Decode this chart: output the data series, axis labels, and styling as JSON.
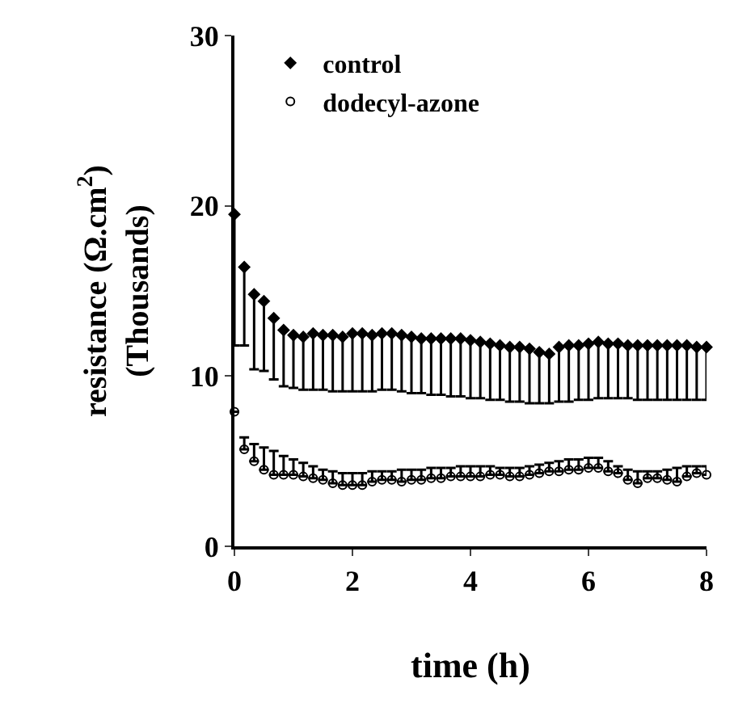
{
  "chart_data": {
    "type": "scatter",
    "xlabel": "time (h)",
    "ylabel": "resistance (Ω.cm$^{2}$)\n(Thousands)",
    "xlim": [
      0,
      8
    ],
    "xticks": [
      0,
      2,
      4,
      6,
      8
    ],
    "ylim": [
      0,
      30
    ],
    "yticks": [
      0,
      10,
      20,
      30
    ],
    "legend": "top left",
    "x": [
      0,
      0.1667,
      0.3333,
      0.5,
      0.6667,
      0.8333,
      1,
      1.1667,
      1.3333,
      1.5,
      1.6667,
      1.8333,
      2,
      2.1667,
      2.3333,
      2.5,
      2.6667,
      2.8333,
      3,
      3.1667,
      3.3333,
      3.5,
      3.6667,
      3.8333,
      4,
      4.1667,
      4.3333,
      4.5,
      4.6667,
      4.8333,
      5,
      5.1667,
      5.3333,
      5.5,
      5.6667,
      5.8333,
      6,
      6.1667,
      6.3333,
      6.5,
      6.6667,
      6.8333,
      7,
      7.1667,
      7.3333,
      7.5,
      7.6667,
      7.8333,
      8
    ],
    "series": [
      {
        "name": "control",
        "color": "#000000",
        "marker": "diamond",
        "values": [
          19.5,
          16.4,
          14.8,
          14.4,
          13.4,
          12.7,
          12.4,
          12.3,
          12.5,
          12.4,
          12.4,
          12.3,
          12.5,
          12.5,
          12.4,
          12.5,
          12.5,
          12.4,
          12.3,
          12.2,
          12.2,
          12.2,
          12.2,
          12.2,
          12.1,
          12.0,
          11.9,
          11.8,
          11.7,
          11.7,
          11.6,
          11.4,
          11.3,
          11.7,
          11.8,
          11.8,
          11.9,
          12.0,
          11.9,
          11.9,
          11.8,
          11.8,
          11.8,
          11.8,
          11.8,
          11.8,
          11.8,
          11.7,
          11.7
        ],
        "errors": [
          [
            11.8,
            19.5
          ],
          [
            11.8,
            16.4
          ],
          [
            10.4,
            14.8
          ],
          [
            10.3,
            14.4
          ],
          [
            9.8,
            13.4
          ],
          [
            9.4,
            12.7
          ],
          [
            9.3,
            12.4
          ],
          [
            9.2,
            12.3
          ],
          [
            9.2,
            12.5
          ],
          [
            9.2,
            12.4
          ],
          [
            9.1,
            12.4
          ],
          [
            9.1,
            12.3
          ],
          [
            9.1,
            12.5
          ],
          [
            9.1,
            12.5
          ],
          [
            9.1,
            12.4
          ],
          [
            9.2,
            12.5
          ],
          [
            9.2,
            12.5
          ],
          [
            9.1,
            12.4
          ],
          [
            9.0,
            12.3
          ],
          [
            9.0,
            12.2
          ],
          [
            8.9,
            12.2
          ],
          [
            8.9,
            12.2
          ],
          [
            8.8,
            12.2
          ],
          [
            8.8,
            12.2
          ],
          [
            8.7,
            12.1
          ],
          [
            8.7,
            12.0
          ],
          [
            8.6,
            11.9
          ],
          [
            8.6,
            11.8
          ],
          [
            8.5,
            11.7
          ],
          [
            8.5,
            11.7
          ],
          [
            8.4,
            11.6
          ],
          [
            8.4,
            11.4
          ],
          [
            8.4,
            11.3
          ],
          [
            8.5,
            11.7
          ],
          [
            8.5,
            11.8
          ],
          [
            8.6,
            11.8
          ],
          [
            8.6,
            11.9
          ],
          [
            8.7,
            12.0
          ],
          [
            8.7,
            11.9
          ],
          [
            8.7,
            11.9
          ],
          [
            8.7,
            11.8
          ],
          [
            8.6,
            11.8
          ],
          [
            8.6,
            11.8
          ],
          [
            8.6,
            11.8
          ],
          [
            8.6,
            11.8
          ],
          [
            8.6,
            11.8
          ],
          [
            8.6,
            11.8
          ],
          [
            8.6,
            11.7
          ],
          [
            8.6,
            11.7
          ]
        ]
      },
      {
        "name": "dodecyl-azone",
        "color": "#000000",
        "marker": "circle-open",
        "values": [
          7.9,
          5.7,
          5.0,
          4.5,
          4.2,
          4.2,
          4.2,
          4.1,
          4.0,
          3.9,
          3.7,
          3.6,
          3.6,
          3.6,
          3.8,
          3.9,
          3.9,
          3.8,
          3.9,
          3.9,
          4.0,
          4.0,
          4.1,
          4.1,
          4.1,
          4.1,
          4.2,
          4.2,
          4.1,
          4.1,
          4.2,
          4.3,
          4.4,
          4.4,
          4.5,
          4.5,
          4.6,
          4.6,
          4.4,
          4.3,
          3.9,
          3.7,
          4.0,
          4.0,
          3.9,
          3.8,
          4.1,
          4.3,
          4.2
        ],
        "errors": [
          null,
          [
            5.7,
            6.4
          ],
          [
            5.0,
            6.0
          ],
          [
            4.5,
            5.8
          ],
          [
            4.2,
            5.6
          ],
          [
            4.2,
            5.3
          ],
          [
            4.2,
            5.1
          ],
          [
            4.1,
            4.9
          ],
          [
            4.0,
            4.7
          ],
          [
            3.9,
            4.5
          ],
          [
            3.7,
            4.4
          ],
          [
            3.6,
            4.3
          ],
          [
            3.6,
            4.3
          ],
          [
            3.6,
            4.3
          ],
          [
            3.8,
            4.4
          ],
          [
            3.9,
            4.4
          ],
          [
            3.9,
            4.4
          ],
          [
            3.8,
            4.5
          ],
          [
            3.9,
            4.5
          ],
          [
            3.9,
            4.5
          ],
          [
            4.0,
            4.6
          ],
          [
            4.0,
            4.6
          ],
          [
            4.1,
            4.6
          ],
          [
            4.1,
            4.7
          ],
          [
            4.1,
            4.7
          ],
          [
            4.1,
            4.7
          ],
          [
            4.2,
            4.7
          ],
          [
            4.2,
            4.6
          ],
          [
            4.1,
            4.6
          ],
          [
            4.1,
            4.6
          ],
          [
            4.2,
            4.7
          ],
          [
            4.3,
            4.8
          ],
          [
            4.4,
            4.9
          ],
          [
            4.4,
            5.0
          ],
          [
            4.5,
            5.1
          ],
          [
            4.5,
            5.1
          ],
          [
            4.6,
            5.2
          ],
          [
            4.6,
            5.2
          ],
          [
            4.4,
            5.0
          ],
          [
            4.3,
            4.7
          ],
          [
            3.9,
            4.5
          ],
          [
            3.7,
            4.4
          ],
          [
            4.0,
            4.4
          ],
          [
            4.0,
            4.4
          ],
          [
            3.9,
            4.5
          ],
          [
            3.8,
            4.6
          ],
          [
            4.1,
            4.7
          ],
          [
            4.3,
            4.7
          ],
          [
            4.2,
            4.7
          ]
        ]
      }
    ]
  }
}
